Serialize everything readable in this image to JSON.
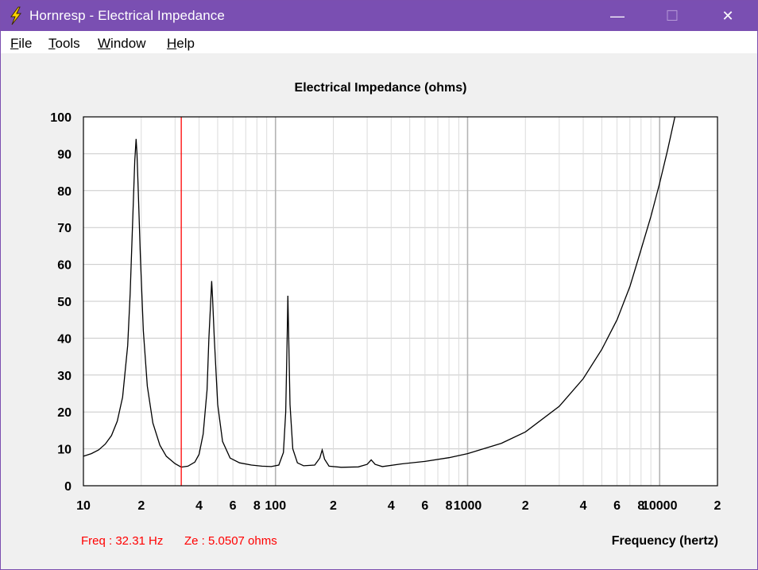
{
  "window": {
    "title": "Hornresp - Electrical Impedance",
    "minimize_symbol": "—",
    "maximize_symbol": "☐",
    "close_symbol": "✕"
  },
  "menu": {
    "items": [
      {
        "label": "File",
        "mnemonic": "F",
        "rest": "ile"
      },
      {
        "label": "Tools",
        "mnemonic": "T",
        "rest": "ools"
      },
      {
        "label": "Window",
        "mnemonic": "W",
        "rest": "indow"
      },
      {
        "label": "Help",
        "mnemonic": "H",
        "rest": "elp"
      }
    ]
  },
  "readout": {
    "freq": "Freq : 32.31 Hz",
    "ze": "Ze : 5.0507 ohms",
    "color": "#ff0000"
  },
  "chart_data": {
    "type": "line",
    "title": "Electrical Impedance (ohms)",
    "xlabel": "Frequency (hertz)",
    "ylabel": "",
    "x_scale": "log",
    "xlim": [
      10,
      20000
    ],
    "ylim": [
      0,
      100
    ],
    "grid": true,
    "x_tick_labels": [
      {
        "f": 10,
        "label": "10"
      },
      {
        "f": 20,
        "label": "2"
      },
      {
        "f": 40,
        "label": "4"
      },
      {
        "f": 60,
        "label": "6"
      },
      {
        "f": 80,
        "label": "8"
      },
      {
        "f": 100,
        "label": "100"
      },
      {
        "f": 200,
        "label": "2"
      },
      {
        "f": 400,
        "label": "4"
      },
      {
        "f": 600,
        "label": "6"
      },
      {
        "f": 800,
        "label": "8"
      },
      {
        "f": 1000,
        "label": "1000"
      },
      {
        "f": 2000,
        "label": "2"
      },
      {
        "f": 4000,
        "label": "4"
      },
      {
        "f": 6000,
        "label": "6"
      },
      {
        "f": 8000,
        "label": "8"
      },
      {
        "f": 10000,
        "label": "10000"
      },
      {
        "f": 20000,
        "label": "2"
      }
    ],
    "y_ticks": [
      0,
      10,
      20,
      30,
      40,
      50,
      60,
      70,
      80,
      90,
      100
    ],
    "cursor_freq": 32.31,
    "cursor_color": "#ff0000",
    "series": [
      {
        "name": "Ze",
        "color": "#000000",
        "points": [
          [
            10,
            8.0
          ],
          [
            11,
            8.7
          ],
          [
            12,
            9.7
          ],
          [
            13,
            11.3
          ],
          [
            14,
            13.6
          ],
          [
            15,
            17.5
          ],
          [
            16,
            24
          ],
          [
            17,
            38
          ],
          [
            17.5,
            52
          ],
          [
            18,
            70
          ],
          [
            18.5,
            88
          ],
          [
            18.8,
            94
          ],
          [
            19.0,
            90
          ],
          [
            19.3,
            80
          ],
          [
            19.8,
            62
          ],
          [
            20.5,
            42
          ],
          [
            21.5,
            27
          ],
          [
            23,
            17
          ],
          [
            25,
            11
          ],
          [
            27,
            8
          ],
          [
            30,
            6
          ],
          [
            32.31,
            5.05
          ],
          [
            35,
            5.3
          ],
          [
            38,
            6.4
          ],
          [
            40,
            8.5
          ],
          [
            42,
            14
          ],
          [
            44,
            26
          ],
          [
            45,
            40
          ],
          [
            46,
            50
          ],
          [
            46.5,
            55.5
          ],
          [
            47,
            51
          ],
          [
            48,
            40
          ],
          [
            50,
            22
          ],
          [
            53,
            12
          ],
          [
            58,
            7.5
          ],
          [
            65,
            6.2
          ],
          [
            75,
            5.6
          ],
          [
            85,
            5.3
          ],
          [
            95,
            5.2
          ],
          [
            104,
            5.6
          ],
          [
            110,
            9
          ],
          [
            113,
            20
          ],
          [
            115,
            40
          ],
          [
            116,
            51.5
          ],
          [
            117,
            42
          ],
          [
            119,
            22
          ],
          [
            123,
            10
          ],
          [
            130,
            6.2
          ],
          [
            140,
            5.4
          ],
          [
            160,
            5.6
          ],
          [
            170,
            7.5
          ],
          [
            175,
            9.7
          ],
          [
            180,
            7.2
          ],
          [
            190,
            5.3
          ],
          [
            220,
            5.0
          ],
          [
            270,
            5.1
          ],
          [
            300,
            5.8
          ],
          [
            315,
            7.0
          ],
          [
            330,
            5.8
          ],
          [
            360,
            5.2
          ],
          [
            450,
            5.9
          ],
          [
            600,
            6.6
          ],
          [
            800,
            7.6
          ],
          [
            1000,
            8.7
          ],
          [
            1500,
            11.5
          ],
          [
            2000,
            14.6
          ],
          [
            3000,
            21.5
          ],
          [
            4000,
            29
          ],
          [
            5000,
            37
          ],
          [
            6000,
            45
          ],
          [
            7000,
            54
          ],
          [
            8000,
            64
          ],
          [
            9000,
            73
          ],
          [
            10000,
            82
          ],
          [
            11000,
            91
          ],
          [
            12000,
            100
          ]
        ]
      }
    ]
  }
}
